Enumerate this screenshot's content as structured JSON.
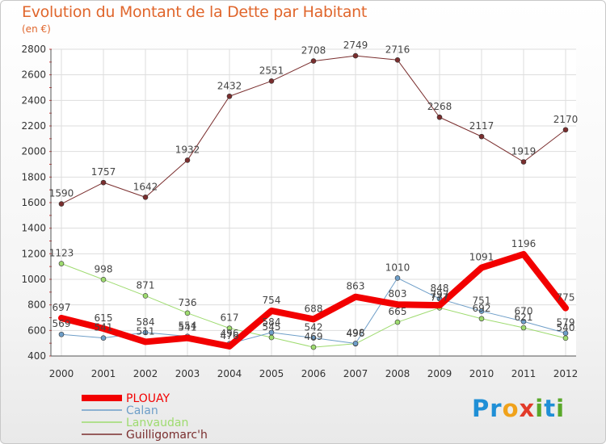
{
  "title": "Evolution du Montant de la Dette par Habitant",
  "unit": "(en €)",
  "logo": [
    "P",
    "r",
    "o",
    "x",
    "i",
    "t",
    "i"
  ],
  "chart_data": {
    "type": "line",
    "x": [
      "2000",
      "2001",
      "2002",
      "2003",
      "2004",
      "2005",
      "2006",
      "2007",
      "2008",
      "2009",
      "2010",
      "2011",
      "2012"
    ],
    "ylim": [
      400,
      2800
    ],
    "yticks": [
      400,
      600,
      800,
      1000,
      1200,
      1400,
      1600,
      1800,
      2000,
      2200,
      2400,
      2600,
      2800
    ],
    "grid": true,
    "legend": "bottom-left",
    "series": [
      {
        "name": "Guilligomarc'h",
        "color": "#7a2e2e",
        "width": 1,
        "values": [
          1590,
          1757,
          1642,
          1932,
          2432,
          2551,
          2708,
          2749,
          2716,
          2268,
          2117,
          1919,
          2170
        ]
      },
      {
        "name": "Lanvaudan",
        "color": "#9edb6f",
        "width": 1,
        "values": [
          1123,
          998,
          871,
          736,
          617,
          545,
          469,
          496,
          665,
          777,
          692,
          621,
          540
        ]
      },
      {
        "name": "Calan",
        "color": "#6e9ec8",
        "width": 1,
        "values": [
          569,
          541,
          584,
          554,
          496,
          584,
          542,
          498,
          1010,
          848,
          751,
          670,
          579
        ]
      },
      {
        "name": "PLOUAY",
        "color": "#f20000",
        "width": 8,
        "values": [
          697,
          615,
          511,
          541,
          476,
          754,
          688,
          863,
          803,
          797,
          1091,
          1196,
          775
        ]
      }
    ],
    "labels": [
      {
        "series": "Guilligomarc'h",
        "texts": [
          "1590",
          "1757",
          "1642",
          "1932",
          "2432",
          "2551",
          "2708",
          "2749",
          "2716",
          "2268",
          "2117",
          "1919",
          "2170"
        ]
      },
      {
        "series": "Lanvaudan",
        "texts": [
          "1123",
          "998",
          "871",
          "736",
          "617",
          "545",
          "469",
          "496",
          "665",
          "777",
          "692",
          "621",
          "540"
        ]
      },
      {
        "series": "Calan",
        "texts": [
          "569",
          "541",
          "584",
          "554",
          "496",
          "584",
          "542",
          "498",
          "1010",
          "848",
          "751",
          "670",
          "579"
        ]
      },
      {
        "series": "PLOUAY",
        "texts": [
          "697",
          "615",
          "511",
          "541",
          "476",
          "754",
          "688",
          "863",
          "803",
          "797",
          "1091",
          "1196",
          "775"
        ]
      }
    ],
    "legend_entries": [
      {
        "name": "PLOUAY",
        "color": "#f20000"
      },
      {
        "name": "Calan",
        "color": "#6e9ec8"
      },
      {
        "name": "Lanvaudan",
        "color": "#9edb6f"
      },
      {
        "name": "Guilligomarc'h",
        "color": "#7a2e2e"
      }
    ]
  }
}
